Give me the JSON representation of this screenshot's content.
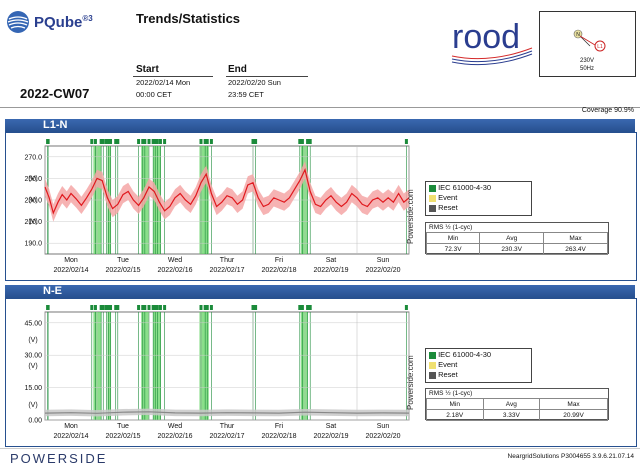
{
  "header": {
    "product": "PQube",
    "product_sup": "®3",
    "title": "Trends/Statistics",
    "week": "2022-CW07",
    "start_label": "Start",
    "start_date": "2022/02/14 Mon",
    "start_time": "00:00 CET",
    "end_label": "End",
    "end_date": "2022/02/20 Sun",
    "end_time": "23:59 CET",
    "brand": "rood",
    "mini_voltage": "230V",
    "mini_freq": "50Hz",
    "mini_badge": "L1",
    "mini_n": "N"
  },
  "coverage": "Coverage 90.9%",
  "watermark": "Powerside.com",
  "colors": {
    "header_blue": "#2f5ea6",
    "trace": "#e0191e",
    "band": "#f4a6a6",
    "event": "#63d463",
    "reset": "#1b8b3a",
    "ne_trace": "#888888",
    "ne_band": "#c8c8c8"
  },
  "legend": {
    "item1": "IEC 61000-4-30",
    "item2": "Event",
    "item3": "Reset"
  },
  "day_labels": [
    "Mon",
    "Tue",
    "Wed",
    "Thur",
    "Fri",
    "Sat",
    "Sun"
  ],
  "date_labels": [
    "2022/02/14",
    "2022/02/15",
    "2022/02/16",
    "2022/02/17",
    "2022/02/18",
    "2022/02/19",
    "2022/02/20"
  ],
  "chart_data": [
    {
      "type": "line",
      "title": "L1-N",
      "ylabel": "(V)",
      "ylim": [
        180,
        280
      ],
      "yticks": [
        190,
        210,
        230,
        250,
        270
      ],
      "ytick_labels": [
        "190.0",
        "210.0",
        "230.0",
        "250.0",
        "270.0"
      ],
      "x_range_days": [
        0,
        7
      ],
      "series": [
        {
          "x_days": [
            0,
            0.08,
            0.16,
            0.25,
            0.33,
            0.42,
            0.5,
            0.6,
            0.7,
            0.8,
            0.9,
            1.0,
            1.1,
            1.2,
            1.3,
            1.4,
            1.5,
            1.6,
            1.7,
            1.8,
            1.9,
            2.0,
            2.1,
            2.2,
            2.3,
            2.4,
            2.5,
            2.6,
            2.7,
            2.8,
            2.9,
            3.0,
            3.1,
            3.2,
            3.3,
            3.4,
            3.5,
            3.6,
            3.7,
            3.8,
            3.9,
            4.0,
            4.1,
            4.2,
            4.3,
            4.4,
            4.5,
            4.6,
            4.7,
            4.8,
            4.9,
            5.0,
            5.1,
            5.2,
            5.3,
            5.4,
            5.5,
            5.6,
            5.7,
            5.8,
            5.9,
            6.0,
            6.1,
            6.2,
            6.3,
            6.4,
            6.5,
            6.6,
            6.7,
            6.8,
            6.9,
            7.0
          ],
          "y": [
            242,
            232,
            218,
            228,
            235,
            230,
            236,
            231,
            225,
            232,
            240,
            250,
            248,
            232,
            222,
            226,
            235,
            238,
            230,
            225,
            232,
            242,
            238,
            228,
            220,
            224,
            232,
            236,
            230,
            226,
            234,
            246,
            254,
            236,
            224,
            228,
            234,
            232,
            226,
            230,
            244,
            246,
            232,
            224,
            226,
            232,
            230,
            228,
            232,
            240,
            248,
            258,
            238,
            226,
            224,
            230,
            234,
            228,
            224,
            228,
            236,
            232,
            226,
            224,
            230,
            232,
            228,
            232,
            228,
            236,
            228,
            232
          ]
        }
      ],
      "events_days": [
        0.05,
        0.06,
        0.9,
        0.97,
        1.08,
        1.12,
        1.18,
        1.22,
        1.26,
        1.36,
        1.4,
        1.8,
        1.88,
        1.92,
        2.0,
        2.08,
        2.12,
        2.16,
        2.22,
        2.3,
        3.0,
        3.08,
        3.12,
        3.2,
        4.0,
        4.05,
        4.9,
        4.95,
        5.05,
        5.1,
        6.95
      ],
      "event_bands_days": [
        [
          0.93,
          1.08
        ],
        [
          1.2,
          1.27
        ],
        [
          1.85,
          2.0
        ],
        [
          2.08,
          2.23
        ],
        [
          2.97,
          3.15
        ],
        [
          4.92,
          5.05
        ]
      ],
      "stats": {
        "title": "RMS ½ (1-cyc)",
        "headers": [
          "Min",
          "Avg",
          "Max"
        ],
        "values": [
          "72.3V",
          "230.3V",
          "263.4V"
        ]
      }
    },
    {
      "type": "line",
      "title": "N-E",
      "ylabel": "(V)",
      "ylim": [
        0,
        50
      ],
      "yticks": [
        0,
        15,
        30,
        45
      ],
      "ytick_labels": [
        "0.00",
        "15.00",
        "30.00",
        "45.00"
      ],
      "x_range_days": [
        0,
        7
      ],
      "series": [
        {
          "x_days": [
            0,
            0.5,
            1.0,
            1.5,
            2.0,
            2.5,
            3.0,
            3.5,
            4.0,
            4.5,
            5.0,
            5.5,
            6.0,
            6.5,
            7.0
          ],
          "y": [
            3.2,
            3.4,
            3.1,
            3.6,
            3.8,
            3.3,
            3.2,
            3.4,
            3.3,
            3.2,
            3.6,
            3.4,
            3.2,
            3.3,
            3.2
          ]
        }
      ],
      "events_days": [
        0.05,
        0.06,
        0.9,
        0.97,
        1.08,
        1.12,
        1.18,
        1.22,
        1.26,
        1.36,
        1.4,
        1.8,
        1.88,
        1.92,
        2.0,
        2.08,
        2.12,
        2.16,
        2.22,
        2.3,
        3.0,
        3.08,
        3.12,
        3.2,
        4.0,
        4.05,
        4.9,
        4.95,
        5.05,
        5.1,
        6.95
      ],
      "event_bands_days": [
        [
          0.93,
          1.08
        ],
        [
          1.2,
          1.27
        ],
        [
          1.85,
          2.0
        ],
        [
          2.08,
          2.23
        ],
        [
          2.97,
          3.15
        ],
        [
          4.92,
          5.05
        ]
      ],
      "stats": {
        "title": "RMS ½ (1-cyc)",
        "headers": [
          "Min",
          "Avg",
          "Max"
        ],
        "values": [
          "2.18V",
          "3.33V",
          "20.99V"
        ]
      }
    }
  ],
  "footer": {
    "brand": "POWERSIDE",
    "info": "NeargridSolutions   P3004655  3.9.6.21.07.14"
  }
}
